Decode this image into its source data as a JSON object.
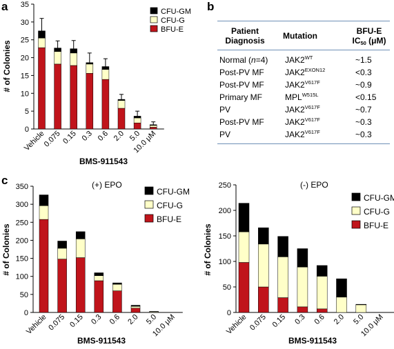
{
  "panels": {
    "a": "a",
    "b": "b",
    "c": "c"
  },
  "table": {
    "headers": {
      "diagnosis_line1": "Patient",
      "diagnosis_line2": "Diagnosis",
      "mutation": "Mutation",
      "ic50_line1": "BFU-E",
      "ic50_main": "IC",
      "ic50_sub": "50",
      "ic50_unit": " (μM)"
    },
    "rows": [
      {
        "diagnosis": "Normal (",
        "diagnosis_italic": "n",
        "diagnosis_tail": "=4)",
        "gene": "JAK2",
        "variant": "WT",
        "ic50": "~1.5"
      },
      {
        "diagnosis": "Post-PV MF",
        "diagnosis_italic": "",
        "diagnosis_tail": "",
        "gene": "JAK2",
        "variant": "EXON12",
        "ic50": "<0.3"
      },
      {
        "diagnosis": "Post-PV MF",
        "diagnosis_italic": "",
        "diagnosis_tail": "",
        "gene": "JAK2",
        "variant": "V617F",
        "ic50": "~0.9"
      },
      {
        "diagnosis": "Primary MF",
        "diagnosis_italic": "",
        "diagnosis_tail": "",
        "gene": "MPL",
        "variant": "W515L",
        "ic50": "<0.15"
      },
      {
        "diagnosis": "PV",
        "diagnosis_italic": "",
        "diagnosis_tail": "",
        "gene": "JAK2",
        "variant": "V617F",
        "ic50": "~0.7"
      },
      {
        "diagnosis": "Post-PV MF",
        "diagnosis_italic": "",
        "diagnosis_tail": "",
        "gene": "JAK2",
        "variant": "V617F",
        "ic50": "~0.3"
      },
      {
        "diagnosis": "PV",
        "diagnosis_italic": "",
        "diagnosis_tail": "",
        "gene": "JAK2",
        "variant": "V617F",
        "ic50": "~0.3"
      }
    ]
  },
  "chart_data": [
    {
      "id": "a",
      "type": "bar",
      "stacked": true,
      "title": "",
      "xlabel": "BMS-911543",
      "ylabel": "# of Colonies",
      "ylim": [
        0,
        35
      ],
      "yticks": [
        0,
        5,
        10,
        15,
        20,
        25,
        30,
        35
      ],
      "categories": [
        "Vehicle",
        "0.075",
        "0.15",
        "0.3",
        "0.6",
        "2.0",
        "5.0",
        "10.0 μM"
      ],
      "series": [
        {
          "name": "BFU-E",
          "color": "#c0141b",
          "values": [
            22.8,
            18.2,
            17.8,
            15.6,
            13.9,
            5.8,
            1.7,
            0.5
          ]
        },
        {
          "name": "CFU-G",
          "color": "#ffffc8",
          "values": [
            2.7,
            3.5,
            3.5,
            2.6,
            2.8,
            2.2,
            1.4,
            0.5
          ]
        },
        {
          "name": "CFU-GM",
          "color": "#000000",
          "values": [
            2.0,
            1.0,
            1.2,
            0.4,
            0.8,
            0.3,
            0.5,
            0.2
          ]
        }
      ],
      "error_top": [
        31.0,
        24.7,
        24.8,
        21.3,
        19.7,
        9.7,
        5.0,
        2.0
      ],
      "legend": "top-right"
    },
    {
      "id": "c1",
      "type": "bar",
      "stacked": true,
      "title": "(+) EPO",
      "xlabel": "BMS-911543",
      "ylabel": "# of Colonies",
      "ylim": [
        0,
        350
      ],
      "yticks": [
        0,
        50,
        100,
        150,
        200,
        250,
        300,
        350
      ],
      "categories": [
        "Vehicle",
        "0.075",
        "0.15",
        "0.3",
        "0.6",
        "2.0",
        "5.0",
        "10.0 μM"
      ],
      "series": [
        {
          "name": "BFU-E",
          "color": "#c0141b",
          "values": [
            258,
            148,
            152,
            88,
            60,
            12,
            0,
            0
          ]
        },
        {
          "name": "CFU-G",
          "color": "#ffffc8",
          "values": [
            38,
            30,
            52,
            14,
            18,
            5,
            2,
            0
          ]
        },
        {
          "name": "CFU-GM",
          "color": "#000000",
          "values": [
            30,
            20,
            20,
            8,
            4,
            3,
            1,
            0
          ]
        }
      ],
      "legend": "top-right"
    },
    {
      "id": "c2",
      "type": "bar",
      "stacked": true,
      "title": "(-) EPO",
      "xlabel": "BMS-911543",
      "ylabel": "# of Colonies",
      "ylim": [
        0,
        250
      ],
      "yticks": [
        0,
        50,
        100,
        150,
        200,
        250
      ],
      "categories": [
        "Vehicle",
        "0.075",
        "0.15",
        "0.3",
        "0.6",
        "2.0",
        "5.0",
        "10.0 μM"
      ],
      "series": [
        {
          "name": "BFU-E",
          "color": "#c0141b",
          "values": [
            98,
            50,
            29,
            11,
            7,
            0,
            0,
            0
          ]
        },
        {
          "name": "CFU-G",
          "color": "#ffffc8",
          "values": [
            60,
            84,
            80,
            78,
            64,
            30,
            15,
            0
          ]
        },
        {
          "name": "CFU-GM",
          "color": "#000000",
          "values": [
            56,
            32,
            40,
            36,
            21,
            36,
            1,
            0
          ]
        }
      ],
      "legend": "top-right"
    }
  ]
}
